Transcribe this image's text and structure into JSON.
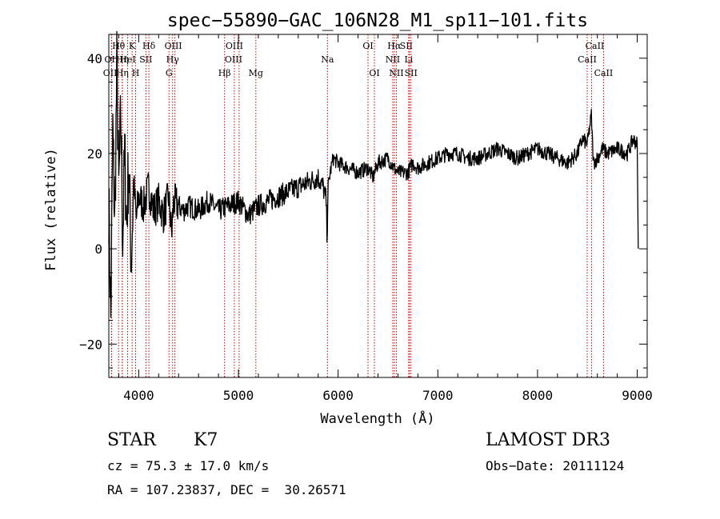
{
  "chart_data": {
    "type": "line",
    "title": "spec−55890−GAC_106N28_M1_sp11−101.fits",
    "xlabel": "Wavelength (Å)",
    "ylabel": "Flux (relative)",
    "xlim": [
      3700,
      9100
    ],
    "ylim": [
      -27,
      45
    ],
    "xticks": [
      4000,
      5000,
      6000,
      7000,
      8000,
      9000
    ],
    "yticks": [
      -20,
      0,
      20,
      40
    ],
    "grid": false,
    "line_color": "#000000",
    "marker_color": "#cc0000",
    "series": [
      {
        "name": "flux",
        "x": [
          3700,
          3720,
          3740,
          3760,
          3780,
          3800,
          3820,
          3840,
          3860,
          3880,
          3900,
          3925,
          3950,
          3975,
          4000,
          4050,
          4100,
          4150,
          4200,
          4250,
          4300,
          4330,
          4350,
          4400,
          4450,
          4500,
          4600,
          4700,
          4800,
          4900,
          5000,
          5100,
          5200,
          5300,
          5400,
          5500,
          5600,
          5700,
          5800,
          5850,
          5880,
          5890,
          5895,
          5900,
          5920,
          5950,
          6000,
          6100,
          6200,
          6300,
          6350,
          6400,
          6500,
          6560,
          6600,
          6700,
          6750,
          6800,
          6900,
          7000,
          7100,
          7200,
          7300,
          7400,
          7500,
          7600,
          7700,
          7800,
          7900,
          8000,
          8100,
          8200,
          8300,
          8400,
          8450,
          8500,
          8540,
          8560,
          8600,
          8650,
          8700,
          8800,
          8900,
          8960,
          9000,
          9010
        ],
        "values": [
          10,
          -15,
          25,
          5,
          38,
          12,
          28,
          2,
          20,
          5,
          18,
          -3,
          14,
          6,
          11,
          9,
          13,
          8,
          10,
          7,
          11,
          3,
          10,
          9,
          8,
          9,
          8,
          10,
          8,
          9,
          10,
          7,
          9,
          10,
          11,
          12,
          13,
          14,
          15,
          13,
          10,
          2,
          10,
          13,
          16,
          19,
          18,
          17,
          16,
          17,
          15,
          18,
          19,
          17,
          16,
          16,
          18,
          17,
          18,
          19,
          20,
          20,
          19,
          19,
          20,
          21,
          20,
          19,
          20,
          21,
          20,
          19,
          18,
          20,
          23,
          22,
          28,
          18,
          19,
          21,
          20,
          21,
          20,
          23,
          22,
          0
        ]
      }
    ],
    "lines": [
      {
        "name": "Hθ",
        "wl": 3798,
        "row": 0,
        "dx": 0
      },
      {
        "name": "K",
        "wl": 3934,
        "row": 0,
        "dx": 0
      },
      {
        "name": "Hδ",
        "wl": 4102,
        "row": 0,
        "dx": 0
      },
      {
        "name": "OIII",
        "wl": 4363,
        "row": 0,
        "dx": -2
      },
      {
        "name": "OIII",
        "wl": 4959,
        "row": 0,
        "dx": 0
      },
      {
        "name": "OI",
        "wl": 6300,
        "row": 0,
        "dx": 0
      },
      {
        "name": "Hα",
        "wl": 6563,
        "row": 0,
        "dx": 0
      },
      {
        "name": "SII",
        "wl": 6716,
        "row": 0,
        "dx": -4
      },
      {
        "name": "CaII",
        "wl": 8542,
        "row": 0,
        "dx": 4
      },
      {
        "name": "OII",
        "wl": 3727,
        "row": 1,
        "dx": 0
      },
      {
        "name": "Hη",
        "wl": 3835,
        "row": 1,
        "dx": 0
      },
      {
        "name": "HeI",
        "wl": 3889,
        "row": 1,
        "dx": 0
      },
      {
        "name": "SII",
        "wl": 4072,
        "row": 1,
        "dx": 0
      },
      {
        "name": "Hγ",
        "wl": 4340,
        "row": 1,
        "dx": 0
      },
      {
        "name": "OIII",
        "wl": 5007,
        "row": 1,
        "dx": -7
      },
      {
        "name": "Na",
        "wl": 5893,
        "row": 1,
        "dx": 0
      },
      {
        "name": "NII",
        "wl": 6548,
        "row": 1,
        "dx": 0
      },
      {
        "name": "Li",
        "wl": 6708,
        "row": 1,
        "dx": 0
      },
      {
        "name": "CaII",
        "wl": 8498,
        "row": 1,
        "dx": 0
      },
      {
        "name": "OII",
        "wl": 3729,
        "row": 2,
        "dx": -2
      },
      {
        "name": "Hη",
        "wl": 3835,
        "row": 2,
        "dx": 0
      },
      {
        "name": "H",
        "wl": 3969,
        "row": 2,
        "dx": 0
      },
      {
        "name": "G",
        "wl": 4304,
        "row": 2,
        "dx": 0
      },
      {
        "name": "Hβ",
        "wl": 4861,
        "row": 2,
        "dx": 0
      },
      {
        "name": "Mg",
        "wl": 5175,
        "row": 2,
        "dx": 0
      },
      {
        "name": "OI",
        "wl": 6364,
        "row": 2,
        "dx": 0
      },
      {
        "name": "NII",
        "wl": 6584,
        "row": 2,
        "dx": 0
      },
      {
        "name": "SII",
        "wl": 6731,
        "row": 2,
        "dx": 0
      },
      {
        "name": "CaII",
        "wl": 8662,
        "row": 2,
        "dx": 0
      }
    ]
  },
  "info": {
    "class": "STAR",
    "subclass": "K7",
    "survey": "LAMOST DR3",
    "cz": "cz = 75.3 ± 17.0 km/s",
    "obs_date": "Obs−Date: 20111124",
    "coords": "RA = 107.23837, DEC =  30.26571"
  }
}
